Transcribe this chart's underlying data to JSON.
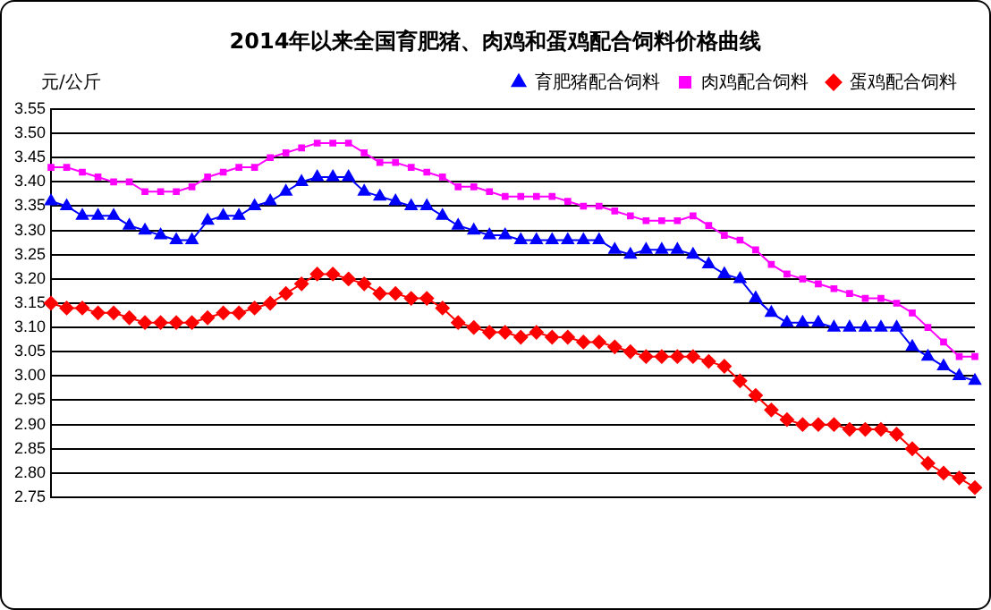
{
  "chart_data": {
    "type": "line",
    "title": "2014年以来全国育肥猪、肉鸡和蛋鸡配合饲料价格曲线",
    "ylabel": "元/公斤",
    "categories": [
      null,
      null,
      null,
      null,
      null,
      null,
      null,
      null,
      null,
      null,
      null,
      null,
      null,
      null,
      null,
      null,
      null,
      null,
      null,
      null,
      null,
      null,
      null,
      null,
      null,
      null,
      null,
      null,
      null,
      null,
      null,
      null,
      null,
      null,
      null,
      null,
      null,
      null,
      null,
      null,
      null,
      null,
      null,
      null,
      null,
      null,
      null,
      null,
      null,
      null,
      null,
      null,
      null,
      null,
      null,
      null,
      null,
      null,
      null,
      null
    ],
    "ylim": [
      2.75,
      3.55
    ],
    "yticks": [
      {
        "value": 2.75,
        "label": "2.75"
      },
      {
        "value": 2.8,
        "label": "2.80"
      },
      {
        "value": 2.85,
        "label": "2.85"
      },
      {
        "value": 2.9,
        "label": "2.90"
      },
      {
        "value": 2.95,
        "label": "2.95"
      },
      {
        "value": 3.0,
        "label": "3.00"
      },
      {
        "value": 3.05,
        "label": "3.05"
      },
      {
        "value": 3.1,
        "label": "3.10"
      },
      {
        "value": 3.15,
        "label": "3.15"
      },
      {
        "value": 3.2,
        "label": "3.20"
      },
      {
        "value": 3.25,
        "label": "3.25"
      },
      {
        "value": 3.3,
        "label": "3.30"
      },
      {
        "value": 3.35,
        "label": "3.35"
      },
      {
        "value": 3.4,
        "label": "3.40"
      },
      {
        "value": 3.45,
        "label": "3.45"
      },
      {
        "value": 3.5,
        "label": "3.50"
      },
      {
        "value": 3.55,
        "label": "3.55"
      }
    ],
    "grid": "y",
    "legend": "top right",
    "series": [
      {
        "name": "育肥猪配合饲料",
        "color": "#0000ff",
        "marker": "triangle",
        "values": [
          3.36,
          3.35,
          3.33,
          3.33,
          3.33,
          3.31,
          3.3,
          3.29,
          3.28,
          3.28,
          3.32,
          3.33,
          3.33,
          3.35,
          3.36,
          3.38,
          3.4,
          3.41,
          3.41,
          3.41,
          3.38,
          3.37,
          3.36,
          3.35,
          3.35,
          3.33,
          3.31,
          3.3,
          3.29,
          3.29,
          3.28,
          3.28,
          3.28,
          3.28,
          3.28,
          3.28,
          3.26,
          3.25,
          3.26,
          3.26,
          3.26,
          3.25,
          3.23,
          3.21,
          3.2,
          3.16,
          3.13,
          3.11,
          3.11,
          3.11,
          3.1,
          3.1,
          3.1,
          3.1,
          3.1,
          3.06,
          3.04,
          3.02,
          3.0,
          2.99
        ]
      },
      {
        "name": "肉鸡配合饲料",
        "color": "#ff00ff",
        "marker": "square",
        "values": [
          3.43,
          3.43,
          3.42,
          3.41,
          3.4,
          3.4,
          3.38,
          3.38,
          3.38,
          3.39,
          3.41,
          3.42,
          3.43,
          3.43,
          3.45,
          3.46,
          3.47,
          3.48,
          3.48,
          3.48,
          3.46,
          3.44,
          3.44,
          3.43,
          3.42,
          3.41,
          3.39,
          3.39,
          3.38,
          3.37,
          3.37,
          3.37,
          3.37,
          3.36,
          3.35,
          3.35,
          3.34,
          3.33,
          3.32,
          3.32,
          3.32,
          3.33,
          3.31,
          3.29,
          3.28,
          3.26,
          3.23,
          3.21,
          3.2,
          3.19,
          3.18,
          3.17,
          3.16,
          3.16,
          3.15,
          3.13,
          3.1,
          3.07,
          3.04,
          3.04
        ]
      },
      {
        "name": "蛋鸡配合饲料",
        "color": "#ff0000",
        "marker": "diamond",
        "values": [
          3.15,
          3.14,
          3.14,
          3.13,
          3.13,
          3.12,
          3.11,
          3.11,
          3.11,
          3.11,
          3.12,
          3.13,
          3.13,
          3.14,
          3.15,
          3.17,
          3.19,
          3.21,
          3.21,
          3.2,
          3.19,
          3.17,
          3.17,
          3.16,
          3.16,
          3.14,
          3.11,
          3.1,
          3.09,
          3.09,
          3.08,
          3.09,
          3.08,
          3.08,
          3.07,
          3.07,
          3.06,
          3.05,
          3.04,
          3.04,
          3.04,
          3.04,
          3.03,
          3.02,
          2.99,
          2.96,
          2.93,
          2.91,
          2.9,
          2.9,
          2.9,
          2.89,
          2.89,
          2.89,
          2.88,
          2.85,
          2.82,
          2.8,
          2.79,
          2.77
        ]
      }
    ]
  }
}
